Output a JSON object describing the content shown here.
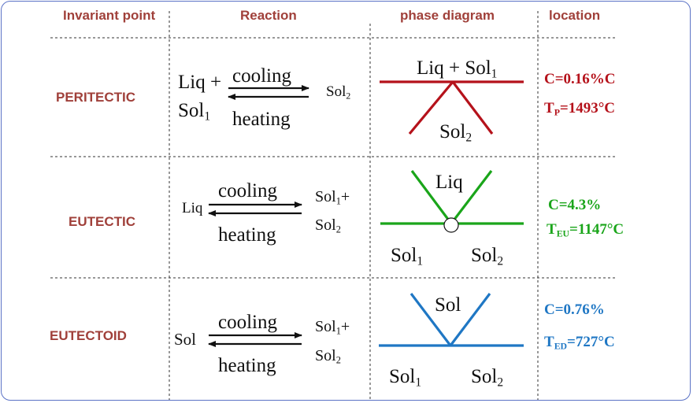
{
  "headers": {
    "invariant_point": "Invariant point",
    "reaction": "Reaction",
    "phase_diagram": "phase diagram",
    "location": "location"
  },
  "rows": [
    {
      "name": "PERITECTIC",
      "reaction": {
        "left_1": "Liq +",
        "left_2": "Sol",
        "left_2_sub": "1",
        "cooling": "cooling",
        "heating": "heating",
        "right_1": "Sol",
        "right_1_sub": "2",
        "right_2": "",
        "right_2_sub": ""
      },
      "diagram": {
        "top": "Liq + Sol",
        "top_sub": "1",
        "bottom": "Sol",
        "bottom_sub": "2"
      },
      "location": {
        "c": "C=0.16%C",
        "t_base": "T",
        "t_sub": "P",
        "t_value": "=1493°C",
        "color": "#b5121b"
      }
    },
    {
      "name": "EUTECTIC",
      "reaction": {
        "left_1": "Liq",
        "cooling": "cooling",
        "heating": "heating",
        "right_1": "Sol",
        "right_1_sub": "1",
        "right_1_suffix": "+",
        "right_2": "Sol",
        "right_2_sub": "2"
      },
      "diagram": {
        "top": "Liq",
        "left": "Sol",
        "left_sub": "1",
        "right": "Sol",
        "right_sub": "2"
      },
      "location": {
        "c": "C=4.3%",
        "t_base": "T",
        "t_sub": "EU",
        "t_value": "=1147°C",
        "color": "#1aa51a"
      }
    },
    {
      "name": "EUTECTOID",
      "reaction": {
        "left_1": "Sol",
        "cooling": "cooling",
        "heating": "heating",
        "right_1": "Sol",
        "right_1_sub": "1",
        "right_1_suffix": "+",
        "right_2": "Sol",
        "right_2_sub": "2"
      },
      "diagram": {
        "top": "Sol",
        "left": "Sol",
        "left_sub": "1",
        "right": "Sol",
        "right_sub": "2"
      },
      "location": {
        "c": "C=0.76%",
        "t_base": "T",
        "t_sub": "ED",
        "t_value": "=727°C",
        "color": "#1f77c4"
      }
    }
  ],
  "colors": {
    "header_text": "#a0403a",
    "frame_border": "#5b72c6",
    "peritectic": "#b5121b",
    "eutectic": "#1aa51a",
    "eutectoid": "#1f77c4"
  }
}
